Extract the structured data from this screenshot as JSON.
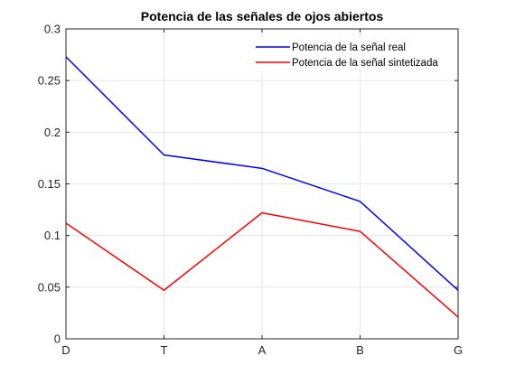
{
  "chart_data": {
    "type": "line",
    "title": "Potencia de las señales de ojos abiertos",
    "xlabel": "",
    "ylabel": "",
    "categories": [
      "D",
      "T",
      "A",
      "B",
      "G"
    ],
    "ylim": [
      0,
      0.3
    ],
    "yticks": [
      "0",
      "0.05",
      "0.1",
      "0.15",
      "0.2",
      "0.25",
      "0.3"
    ],
    "yticks_values": [
      0,
      0.05,
      0.1,
      0.15,
      0.2,
      0.25,
      0.3
    ],
    "grid": true,
    "legend_position": "top-right",
    "series": [
      {
        "name": "Potencia de la señal real",
        "color": "#0000ff",
        "values": [
          0.273,
          0.178,
          0.165,
          0.133,
          0.047
        ]
      },
      {
        "name": "Potencia de la señal sintetizada",
        "color": "#ff0000",
        "values": [
          0.112,
          0.047,
          0.122,
          0.104,
          0.021
        ]
      }
    ]
  }
}
